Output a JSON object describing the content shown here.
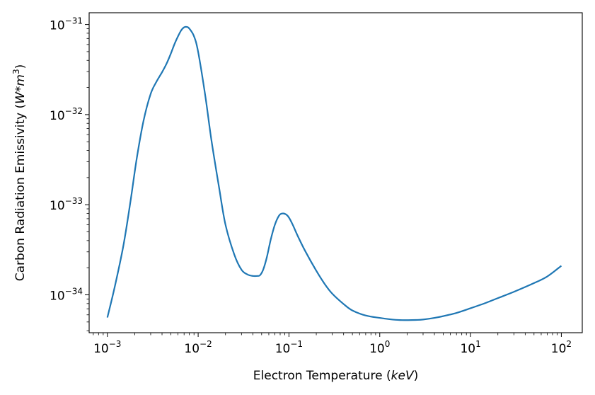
{
  "chart_data": {
    "type": "line",
    "title": "",
    "xlabel_prefix": "Electron Temperature (",
    "xlabel_math": "keV",
    "xlabel_suffix": ")",
    "ylabel_prefix": "Carbon Radiation Emissivity (",
    "ylabel_math": "W*m",
    "ylabel_exp": "3",
    "ylabel_suffix": ")",
    "xscale": "log",
    "yscale": "log",
    "xlim": [
      0.00063,
      170
    ],
    "ylim": [
      3.8e-35,
      1.35e-31
    ],
    "grid": false,
    "line_color": "#1f77b4",
    "x_ticks": [
      {
        "value": 0.001,
        "base": "10",
        "exp": "−3"
      },
      {
        "value": 0.01,
        "base": "10",
        "exp": "−2"
      },
      {
        "value": 0.1,
        "base": "10",
        "exp": "−1"
      },
      {
        "value": 1,
        "base": "10",
        "exp": "0"
      },
      {
        "value": 10,
        "base": "10",
        "exp": "1"
      },
      {
        "value": 100,
        "base": "10",
        "exp": "2"
      }
    ],
    "y_ticks": [
      {
        "value": 1e-34,
        "base": "10",
        "exp": "−34"
      },
      {
        "value": 1e-33,
        "base": "10",
        "exp": "−33"
      },
      {
        "value": 1e-32,
        "base": "10",
        "exp": "−32"
      },
      {
        "value": 1e-31,
        "base": "10",
        "exp": "−31"
      }
    ],
    "series": [
      {
        "x": [
          0.001,
          0.0012,
          0.0015,
          0.0018,
          0.0021,
          0.0025,
          0.003,
          0.0035,
          0.004,
          0.0045,
          0.005,
          0.0055,
          0.006,
          0.0065,
          0.007,
          0.0075,
          0.008,
          0.009,
          0.01,
          0.012,
          0.014,
          0.017,
          0.02,
          0.025,
          0.03,
          0.035,
          0.04,
          0.045,
          0.048,
          0.052,
          0.057,
          0.063,
          0.07,
          0.078,
          0.085,
          0.093,
          0.1,
          0.11,
          0.125,
          0.15,
          0.2,
          0.25,
          0.3,
          0.4,
          0.5,
          0.7,
          1.0,
          1.5,
          2.0,
          2.5,
          3.0,
          4.0,
          5.0,
          7.0,
          10,
          15,
          20,
          30,
          50,
          70,
          100
        ],
        "y": [
          5.6e-35,
          1.2e-34,
          3.5e-34,
          1.1e-33,
          3.2e-33,
          8.5e-33,
          1.7e-32,
          2.35e-32,
          2.95e-32,
          3.7e-32,
          4.75e-32,
          6.1e-32,
          7.4e-32,
          8.6e-32,
          9.3e-32,
          9.4e-32,
          9e-32,
          7.4e-32,
          4.95e-32,
          1.6e-32,
          5.2e-33,
          1.55e-33,
          6e-34,
          2.8e-34,
          1.9e-34,
          1.68e-34,
          1.62e-34,
          1.62e-34,
          1.65e-34,
          1.9e-34,
          2.6e-34,
          4.1e-34,
          6e-34,
          7.6e-34,
          8e-34,
          7.8e-34,
          7.2e-34,
          6e-34,
          4.5e-34,
          3.1e-34,
          1.85e-34,
          1.3e-34,
          1.03e-34,
          7.9e-35,
          6.7e-35,
          5.9e-35,
          5.55e-35,
          5.28e-35,
          5.24e-35,
          5.26e-35,
          5.32e-35,
          5.55e-35,
          5.8e-35,
          6.3e-35,
          7.1e-35,
          8.2e-35,
          9.2e-35,
          1.08e-34,
          1.35e-34,
          1.6e-34,
          2.1e-34
        ]
      }
    ]
  }
}
